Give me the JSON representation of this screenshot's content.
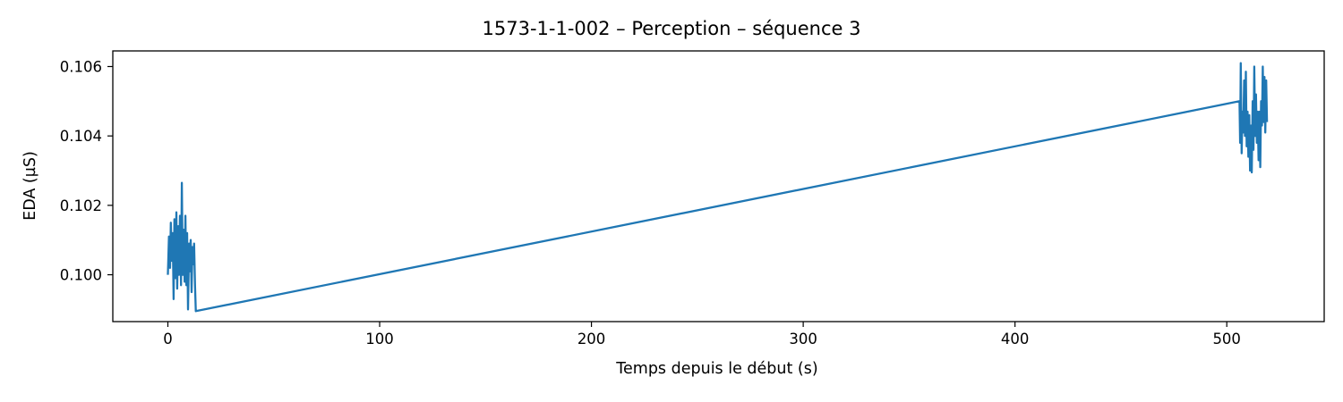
{
  "chart_data": {
    "type": "line",
    "title": "1573-1-1-002 – Perception – séquence 3",
    "xlabel": "Temps depuis le début (s)",
    "ylabel": "EDA (µS)",
    "xlim": [
      -26,
      546
    ],
    "ylim": [
      0.09865,
      0.10645
    ],
    "xticks": [
      0,
      100,
      200,
      300,
      400,
      500
    ],
    "xtick_labels": [
      "0",
      "100",
      "200",
      "300",
      "400",
      "500"
    ],
    "yticks": [
      0.1,
      0.102,
      0.104,
      0.106
    ],
    "ytick_labels": [
      "0.100",
      "0.102",
      "0.104",
      "0.106"
    ],
    "grid": false,
    "line_color": "#1f77b4",
    "series": [
      {
        "x": [
          0.0,
          0.5,
          1.0,
          1.4,
          1.8,
          2.3,
          2.7,
          3.1,
          3.6,
          4.0,
          4.4,
          4.9,
          5.3,
          5.7,
          6.2,
          6.6,
          7.0,
          7.5,
          7.9,
          8.3,
          8.7,
          9.1,
          9.5,
          10.0,
          10.4,
          10.8,
          11.2,
          11.6,
          12.0,
          12.4,
          12.8,
          13.2,
          506.0,
          506.3,
          506.6,
          507.0,
          507.4,
          507.8,
          508.2,
          508.6,
          509.0,
          509.4,
          509.8,
          510.2,
          510.6,
          511.0,
          511.4,
          511.8,
          512.2,
          512.6,
          513.0,
          513.4,
          513.8,
          514.2,
          514.6,
          515.0,
          515.4,
          515.8,
          516.2,
          516.6,
          517.0,
          517.4,
          517.8,
          518.2,
          518.6,
          519.0
        ],
        "y": [
          0.1,
          0.1011,
          0.1002,
          0.1015,
          0.1004,
          0.1012,
          0.0993,
          0.1016,
          0.0999,
          0.1018,
          0.0996,
          0.1014,
          0.1,
          0.1017,
          0.0997,
          0.10265,
          0.1,
          0.1013,
          0.0998,
          0.1017,
          0.0997,
          0.1012,
          0.099,
          0.1009,
          0.1001,
          0.101,
          0.0995,
          0.1008,
          0.1003,
          0.1009,
          0.0997,
          0.09895,
          0.105,
          0.1038,
          0.1061,
          0.1035,
          0.1047,
          0.1041,
          0.1056,
          0.104,
          0.10585,
          0.1037,
          0.1047,
          0.1034,
          0.1046,
          0.103,
          0.1043,
          0.10295,
          0.105,
          0.1036,
          0.106,
          0.104,
          0.1052,
          0.1038,
          0.1047,
          0.1033,
          0.1047,
          0.1031,
          0.105,
          0.1043,
          0.106,
          0.1044,
          0.1057,
          0.1041,
          0.1056,
          0.1044
        ]
      }
    ]
  }
}
